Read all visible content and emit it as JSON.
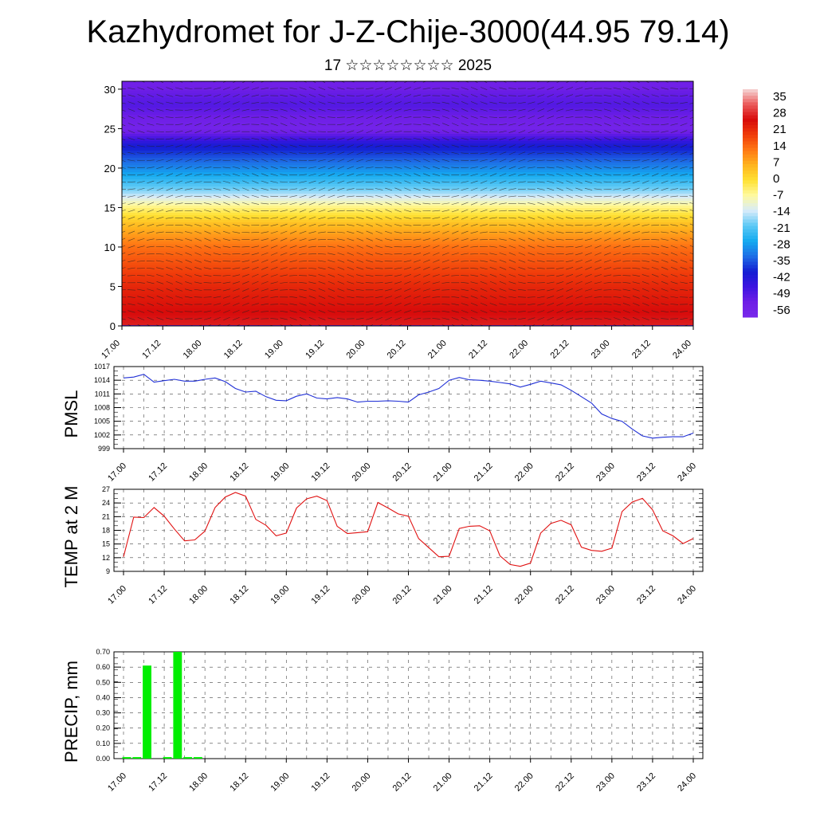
{
  "title": "Kazhydromet for J-Z-Chije-3000(44.95 79.14)",
  "subtitle": "17 ☆☆☆☆☆☆☆☆ 2025",
  "colors": {
    "pmsl_line": "#1f2fd6",
    "temp_line": "#e01010",
    "precip_bar": "#00ee00",
    "grid": "#444444"
  },
  "chart_data": [
    {
      "type": "heatmap",
      "name": "temperature-wind-profile",
      "x_ticks": [
        "17.00",
        "17.12",
        "18.00",
        "18.12",
        "19.00",
        "19.12",
        "20.00",
        "20.12",
        "21.00",
        "21.12",
        "22.00",
        "22.12",
        "23.00",
        "23.12",
        "24.00"
      ],
      "y_ticks": [
        "0",
        "5",
        "10",
        "15",
        "20",
        "25",
        "30"
      ],
      "ylim": [
        0,
        31
      ],
      "colorbar_labels": [
        "35",
        "28",
        "21",
        "14",
        "7",
        "0",
        "-7",
        "-14",
        "-21",
        "-28",
        "-35",
        "-42",
        "-49",
        "-56"
      ],
      "colorbar_range": [
        -63,
        42
      ],
      "levels": [
        0,
        5,
        10,
        13,
        15,
        17,
        20,
        23,
        25,
        28,
        31
      ],
      "level_values": [
        30,
        24,
        15,
        5,
        -5,
        -18,
        -32,
        -44,
        -60,
        -52,
        -58
      ]
    },
    {
      "type": "line",
      "name": "PMSL",
      "ylabel": "PMSL",
      "x_ticks": [
        "17.00",
        "17.12",
        "18.00",
        "18.12",
        "19.00",
        "19.12",
        "20.00",
        "20.12",
        "21.00",
        "21.12",
        "22.00",
        "22.12",
        "23.00",
        "23.12",
        "24.00"
      ],
      "y_ticks": [
        "1017",
        "1014",
        "1011",
        "1008",
        "1005",
        "1002",
        "999"
      ],
      "ylim": [
        999,
        1017
      ],
      "values": [
        1014.5,
        1014.7,
        1015.3,
        1013.6,
        1013.9,
        1014.2,
        1013.8,
        1013.8,
        1014.2,
        1014.5,
        1013.7,
        1012.2,
        1011.4,
        1011.6,
        1010.4,
        1009.6,
        1009.5,
        1010.5,
        1011.0,
        1010.1,
        1009.9,
        1010.2,
        1009.9,
        1009.2,
        1009.4,
        1009.4,
        1009.5,
        1009.4,
        1009.2,
        1010.8,
        1011.4,
        1012.2,
        1014.0,
        1014.6,
        1014.1,
        1014.0,
        1013.8,
        1013.5,
        1013.2,
        1012.5,
        1013.1,
        1013.8,
        1013.4,
        1013.0,
        1011.8,
        1010.4,
        1009.0,
        1006.6,
        1005.6,
        1005.0,
        1003.3,
        1001.8,
        1001.3,
        1001.5,
        1001.6,
        1001.6,
        1002.4
      ]
    },
    {
      "type": "line",
      "name": "TEMP at 2 M",
      "ylabel": "TEMP at 2 M",
      "x_ticks": [
        "17.00",
        "17.12",
        "18.00",
        "18.12",
        "19.00",
        "19.12",
        "20.00",
        "20.12",
        "21.00",
        "21.12",
        "22.00",
        "22.12",
        "23.00",
        "23.12",
        "24.00"
      ],
      "y_ticks": [
        "27",
        "24",
        "21",
        "18",
        "15",
        "12",
        "9"
      ],
      "ylim": [
        9,
        27
      ],
      "values": [
        12.2,
        20.9,
        20.8,
        23.0,
        21.1,
        18.3,
        15.7,
        15.9,
        17.8,
        23.0,
        25.3,
        26.3,
        25.5,
        20.4,
        19.1,
        16.8,
        17.4,
        22.9,
        24.9,
        25.5,
        24.5,
        18.9,
        17.3,
        17.5,
        17.7,
        24.1,
        22.9,
        21.6,
        21.1,
        16.2,
        14.2,
        12.2,
        12.3,
        18.4,
        18.9,
        19.0,
        17.9,
        12.4,
        10.5,
        10.1,
        10.8,
        17.4,
        19.5,
        20.2,
        19.2,
        14.3,
        13.6,
        13.4,
        14.1,
        22.1,
        24.2,
        25.0,
        22.5,
        17.9,
        16.8,
        15.1,
        16.2
      ]
    },
    {
      "type": "bar",
      "name": "PRECIP",
      "ylabel": "PRECIP, mm",
      "x_ticks": [
        "17.00",
        "17.12",
        "18.00",
        "18.12",
        "19.00",
        "19.12",
        "20.00",
        "20.12",
        "21.00",
        "21.12",
        "22.00",
        "22.12",
        "23.00",
        "23.12",
        "24.00"
      ],
      "y_ticks": [
        "0.70",
        "0.60",
        "0.50",
        "0.40",
        "0.30",
        "0.20",
        "0.10",
        "0.00"
      ],
      "ylim": [
        0,
        0.7
      ],
      "values": [
        0.01,
        0.01,
        0.61,
        0,
        0.01,
        0.7,
        0.01,
        0.01,
        0,
        0,
        0,
        0,
        0,
        0,
        0,
        0,
        0,
        0,
        0,
        0,
        0,
        0,
        0,
        0,
        0,
        0,
        0,
        0,
        0,
        0,
        0,
        0,
        0,
        0,
        0,
        0,
        0,
        0,
        0,
        0,
        0,
        0,
        0,
        0,
        0,
        0,
        0,
        0,
        0,
        0,
        0,
        0,
        0,
        0,
        0,
        0,
        0
      ]
    }
  ]
}
